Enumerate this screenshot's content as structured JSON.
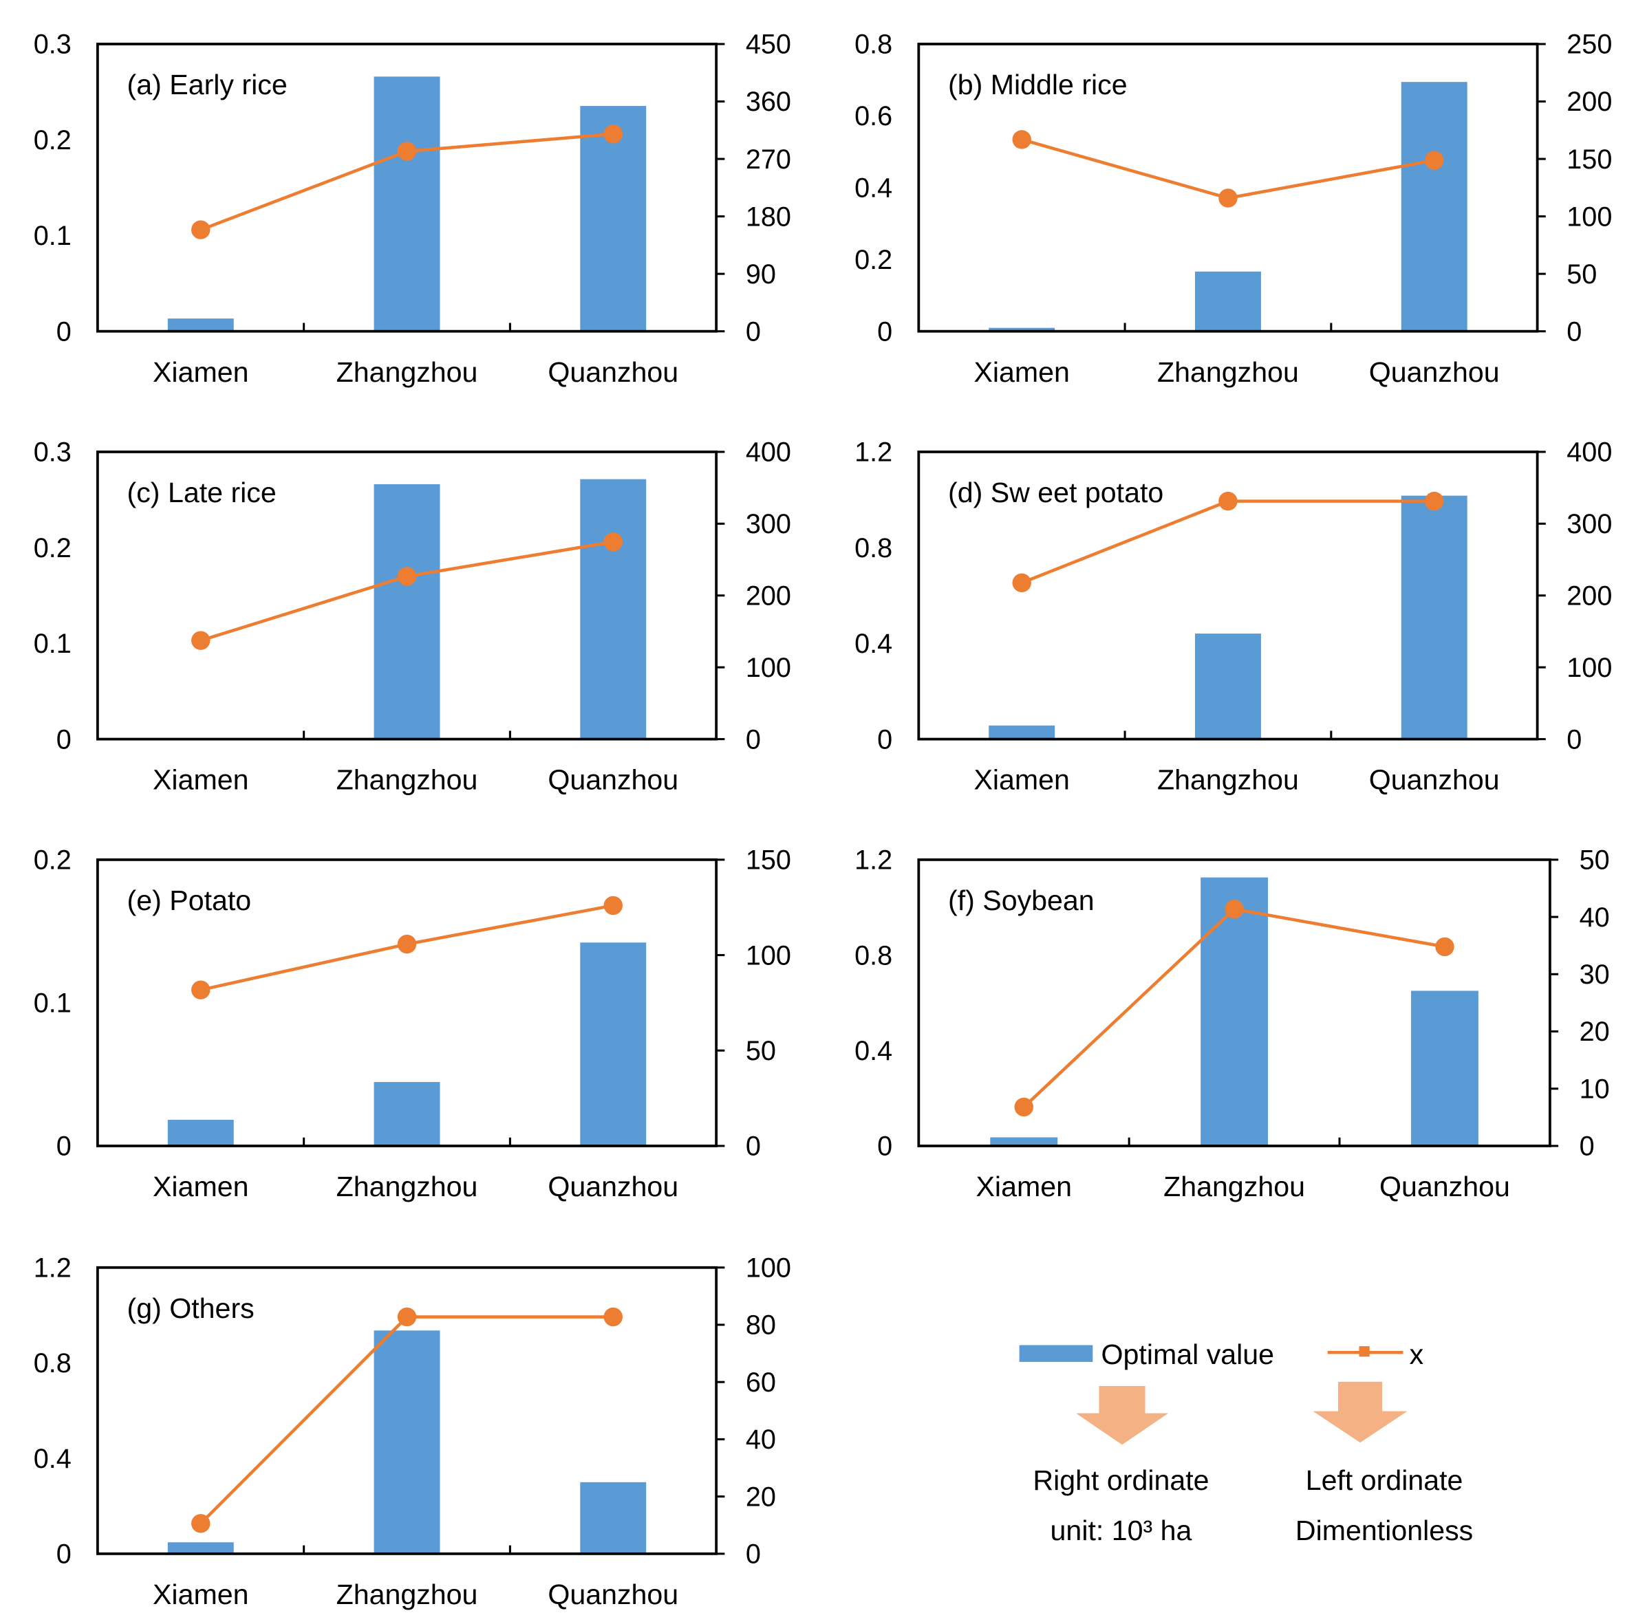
{
  "colors": {
    "bar": "#5B9BD5",
    "line": "#ED7D31",
    "arrow": "#F4B183"
  },
  "chart_data": [
    {
      "type": "bar+line",
      "title": "(a) Early rice",
      "categories": [
        "Xiamen",
        "Zhangzhou",
        "Quanzhou"
      ],
      "bar_values": [
        20,
        399,
        353
      ],
      "line_values": [
        0.106,
        0.188,
        0.206
      ],
      "left_ylim": [
        0,
        0.3
      ],
      "left_ticks": [
        "0",
        "0.1",
        "0.2",
        "0.3"
      ],
      "right_ylim": [
        0,
        450
      ],
      "right_ticks": [
        "0",
        "90",
        "180",
        "270",
        "360",
        "450"
      ]
    },
    {
      "type": "bar+line",
      "title": "(b) Middle rice",
      "categories": [
        "Xiamen",
        "Zhangzhou",
        "Quanzhou"
      ],
      "bar_values": [
        3,
        52,
        217
      ],
      "line_values": [
        0.534,
        0.371,
        0.476
      ],
      "left_ylim": [
        0,
        0.8
      ],
      "left_ticks": [
        "0",
        "0.2",
        "0.4",
        "0.6",
        "0.8"
      ],
      "right_ylim": [
        0,
        250
      ],
      "right_ticks": [
        "0",
        "50",
        "100",
        "150",
        "200",
        "250"
      ]
    },
    {
      "type": "bar+line",
      "title": "(c) Late rice",
      "categories": [
        "Xiamen",
        "Zhangzhou",
        "Quanzhou"
      ],
      "bar_values": [
        0,
        355,
        362
      ],
      "line_values": [
        0.103,
        0.17,
        0.206
      ],
      "left_ylim": [
        0,
        0.3
      ],
      "left_ticks": [
        "0",
        "0.1",
        "0.2",
        "0.3"
      ],
      "right_ylim": [
        0,
        400
      ],
      "right_ticks": [
        "0",
        "100",
        "200",
        "300",
        "400"
      ]
    },
    {
      "type": "bar+line",
      "title": "(d) Sw eet potato",
      "categories": [
        "Xiamen",
        "Zhangzhou",
        "Quanzhou"
      ],
      "bar_values": [
        19,
        147,
        339
      ],
      "line_values": [
        0.653,
        0.994,
        0.994
      ],
      "left_ylim": [
        0,
        1.2
      ],
      "left_ticks": [
        "0",
        "0.4",
        "0.8",
        "1.2"
      ],
      "right_ylim": [
        0,
        400
      ],
      "right_ticks": [
        "0",
        "100",
        "200",
        "300",
        "400"
      ]
    },
    {
      "type": "bar+line",
      "title": "(e) Potato",
      "categories": [
        "Xiamen",
        "Zhangzhou",
        "Quanzhou"
      ],
      "bar_values": [
        13.7,
        33.5,
        106.6
      ],
      "line_values": [
        0.109,
        0.141,
        0.168
      ],
      "left_ylim": [
        0,
        0.2
      ],
      "left_ticks": [
        "0",
        "0.1",
        "0.2"
      ],
      "right_ylim": [
        0,
        150
      ],
      "right_ticks": [
        "0",
        "50",
        "100",
        "150"
      ]
    },
    {
      "type": "bar+line",
      "title": "(f) Soybean",
      "categories": [
        "Xiamen",
        "Zhangzhou",
        "Quanzhou"
      ],
      "bar_values": [
        1.5,
        46.9,
        27.1
      ],
      "line_values": [
        0.163,
        0.993,
        0.835
      ],
      "left_ylim": [
        0,
        1.2
      ],
      "left_ticks": [
        "0",
        "0.4",
        "0.8",
        "1.2"
      ],
      "right_ylim": [
        0,
        50
      ],
      "right_ticks": [
        "0",
        "10",
        "20",
        "30",
        "40",
        "50"
      ]
    },
    {
      "type": "bar+line",
      "title": "(g) Others",
      "categories": [
        "Xiamen",
        "Zhangzhou",
        "Quanzhou"
      ],
      "bar_values": [
        4,
        78,
        25
      ],
      "line_values": [
        0.127,
        0.993,
        0.993
      ],
      "left_ylim": [
        0,
        1.2
      ],
      "left_ticks": [
        "0",
        "0.4",
        "0.8",
        "1.2"
      ],
      "right_ylim": [
        0,
        100
      ],
      "right_ticks": [
        "0",
        "20",
        "40",
        "60",
        "80",
        "100"
      ]
    }
  ],
  "legend": {
    "bar_label": "Optimal value",
    "line_label": "x",
    "right_note_1": "Right ordinate",
    "right_note_2": "unit: 10³ ha",
    "left_note_1": "Left ordinate",
    "left_note_2": "Dimentionless"
  }
}
